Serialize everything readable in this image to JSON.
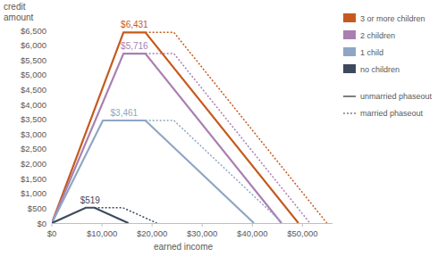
{
  "chart_data": {
    "type": "line",
    "x_label": "earned income",
    "y_label": "credit amount",
    "xlim": [
      0,
      56000
    ],
    "ylim": [
      0,
      6500
    ],
    "xticks": [
      {
        "value": 0,
        "label": "$0"
      },
      {
        "value": 10000,
        "label": "$10,000"
      },
      {
        "value": 20000,
        "label": "$20,000"
      },
      {
        "value": 30000,
        "label": "$30,000"
      },
      {
        "value": 40000,
        "label": "$40,000"
      },
      {
        "value": 50000,
        "label": "$50,000"
      }
    ],
    "yticks": [
      {
        "value": 0,
        "label": "$0"
      },
      {
        "value": 500,
        "label": "$500"
      },
      {
        "value": 1000,
        "label": "$1,000"
      },
      {
        "value": 1500,
        "label": "$1,500"
      },
      {
        "value": 2000,
        "label": "$2,000"
      },
      {
        "value": 2500,
        "label": "$2,500"
      },
      {
        "value": 3000,
        "label": "$3,000"
      },
      {
        "value": 3500,
        "label": "$3,500"
      },
      {
        "value": 4000,
        "label": "$4,000"
      },
      {
        "value": 4500,
        "label": "$4,500"
      },
      {
        "value": 5000,
        "label": "$5,000"
      },
      {
        "value": 5500,
        "label": "$5,500"
      },
      {
        "value": 6000,
        "label": "$6,000"
      },
      {
        "value": 6500,
        "label": "$6,500"
      }
    ],
    "grid": false,
    "legend": "right",
    "series": [
      {
        "name": "3 or more children",
        "color": "#c65a1e",
        "line_style": "solid",
        "x": [
          0,
          14290,
          18660,
          49194
        ],
        "values": [
          0,
          6431,
          6431,
          0
        ]
      },
      {
        "name": "3 or more children",
        "color": "#c65a1e",
        "line_style": "dotted",
        "x": [
          18660,
          24350,
          54884
        ],
        "values": [
          6431,
          6431,
          0
        ]
      },
      {
        "name": "2 children",
        "color": "#a97fb0",
        "line_style": "solid",
        "x": [
          0,
          14290,
          18660,
          45802
        ],
        "values": [
          0,
          5716,
          5716,
          0
        ]
      },
      {
        "name": "2 children",
        "color": "#a97fb0",
        "line_style": "dotted",
        "x": [
          18660,
          24350,
          51492
        ],
        "values": [
          5716,
          5716,
          0
        ]
      },
      {
        "name": "1 child",
        "color": "#8fa6c3",
        "line_style": "solid",
        "x": [
          0,
          10180,
          18660,
          40320
        ],
        "values": [
          0,
          3461,
          3461,
          0
        ]
      },
      {
        "name": "1 child",
        "color": "#8fa6c3",
        "line_style": "dotted",
        "x": [
          18660,
          24350,
          46010
        ],
        "values": [
          3461,
          3461,
          0
        ]
      },
      {
        "name": "no children",
        "color": "#3d4a5e",
        "line_style": "solid",
        "x": [
          0,
          6780,
          8490,
          15270
        ],
        "values": [
          0,
          519,
          519,
          0
        ]
      },
      {
        "name": "no children",
        "color": "#3d4a5e",
        "line_style": "dotted",
        "x": [
          8490,
          14170,
          20950
        ],
        "values": [
          519,
          519,
          0
        ]
      }
    ],
    "annotations": [
      {
        "label": "$6,431",
        "value": 6431
      },
      {
        "label": "$5,716",
        "value": 5716
      },
      {
        "label": "$3,461",
        "value": 3461
      },
      {
        "label": "$519",
        "value": 519
      }
    ],
    "line_styles": [
      {
        "label": "unmarried phaseout",
        "line_style": "solid"
      },
      {
        "label": "married phaseout",
        "line_style": "dotted"
      }
    ]
  }
}
